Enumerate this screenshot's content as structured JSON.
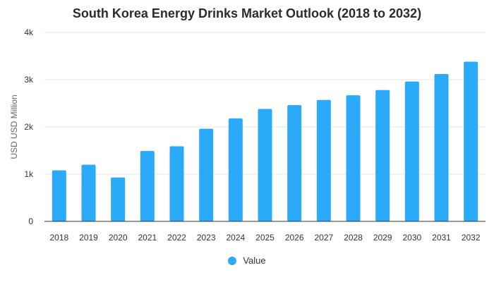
{
  "chart_data": {
    "type": "bar",
    "title": "South Korea Energy Drinks Market Outlook (2018 to 2032)",
    "xlabel": "",
    "ylabel": "USD USD Million",
    "ylim": [
      0,
      4000
    ],
    "yticks": [
      0,
      1000,
      2000,
      3000,
      4000
    ],
    "ytick_labels": [
      "0",
      "1k",
      "2k",
      "3k",
      "4k"
    ],
    "categories": [
      "2018",
      "2019",
      "2020",
      "2021",
      "2022",
      "2023",
      "2024",
      "2025",
      "2026",
      "2027",
      "2028",
      "2029",
      "2030",
      "2031",
      "2032"
    ],
    "series": [
      {
        "name": "Value",
        "color": "#2aaaf8",
        "values": [
          1080,
          1200,
          930,
          1490,
          1590,
          1960,
          2180,
          2380,
          2460,
          2570,
          2670,
          2780,
          2960,
          3120,
          3380
        ]
      }
    ],
    "grid": true,
    "legend_position": "bottom"
  }
}
